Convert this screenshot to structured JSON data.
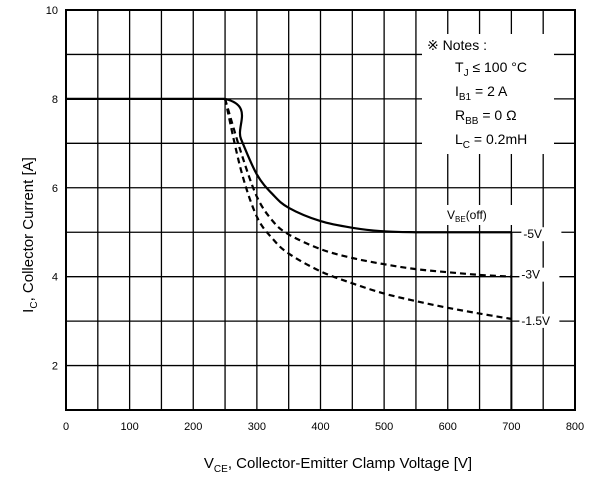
{
  "chart_data": {
    "type": "line",
    "xlabel": {
      "main": "V",
      "sub": "CE",
      "rest": ", Collector-Emitter Clamp Voltage [V]"
    },
    "ylabel": {
      "main": "I",
      "sub": "C",
      "rest": ", Collector Current [A]"
    },
    "xlim": [
      0,
      800
    ],
    "ylim": [
      1,
      10
    ],
    "x_ticks": [
      "0",
      "100",
      "200",
      "300",
      "400",
      "500",
      "600",
      "700",
      "800"
    ],
    "y_ticks": [
      "2",
      "4",
      "6",
      "8",
      "10"
    ],
    "x_tick_values": [
      0,
      100,
      200,
      300,
      400,
      500,
      600,
      700,
      800
    ],
    "y_tick_values": [
      2,
      4,
      6,
      8,
      10
    ],
    "grid": true,
    "legend_title": {
      "main": "V",
      "sub": "BE",
      "rest": "(off)"
    },
    "notes": {
      "title": "※ Notes :",
      "lines": [
        {
          "main": "T",
          "sub": "J",
          "rest": " ≤ 100 °C"
        },
        {
          "main": "I",
          "sub": "B1",
          "rest": " = 2 A"
        },
        {
          "main": "R",
          "sub": "BB",
          "rest": " = 0 Ω"
        },
        {
          "main": "L",
          "sub": "C",
          "rest": " = 0.2mH"
        }
      ]
    },
    "series": [
      {
        "name": "-5V",
        "style": "solid",
        "x": [
          0,
          250,
          275,
          300,
          325,
          350,
          400,
          450,
          500,
          550,
          600,
          650,
          700
        ],
        "y": [
          8,
          8,
          7.1,
          6.3,
          5.85,
          5.55,
          5.25,
          5.1,
          5.02,
          5.0,
          5.0,
          5.0,
          5.0
        ]
      },
      {
        "name": "-3V",
        "style": "dashed",
        "x": [
          250,
          275,
          300,
          325,
          350,
          400,
          450,
          500,
          550,
          600,
          650,
          700
        ],
        "y": [
          8,
          6.8,
          5.8,
          5.25,
          4.95,
          4.62,
          4.42,
          4.28,
          4.17,
          4.1,
          4.04,
          4.0
        ]
      },
      {
        "name": "-1.5V",
        "style": "dashed",
        "x": [
          250,
          275,
          300,
          325,
          350,
          400,
          450,
          500,
          550,
          600,
          650,
          700
        ],
        "y": [
          8,
          6.4,
          5.35,
          4.85,
          4.52,
          4.12,
          3.85,
          3.62,
          3.45,
          3.3,
          3.17,
          3.05
        ]
      }
    ]
  }
}
